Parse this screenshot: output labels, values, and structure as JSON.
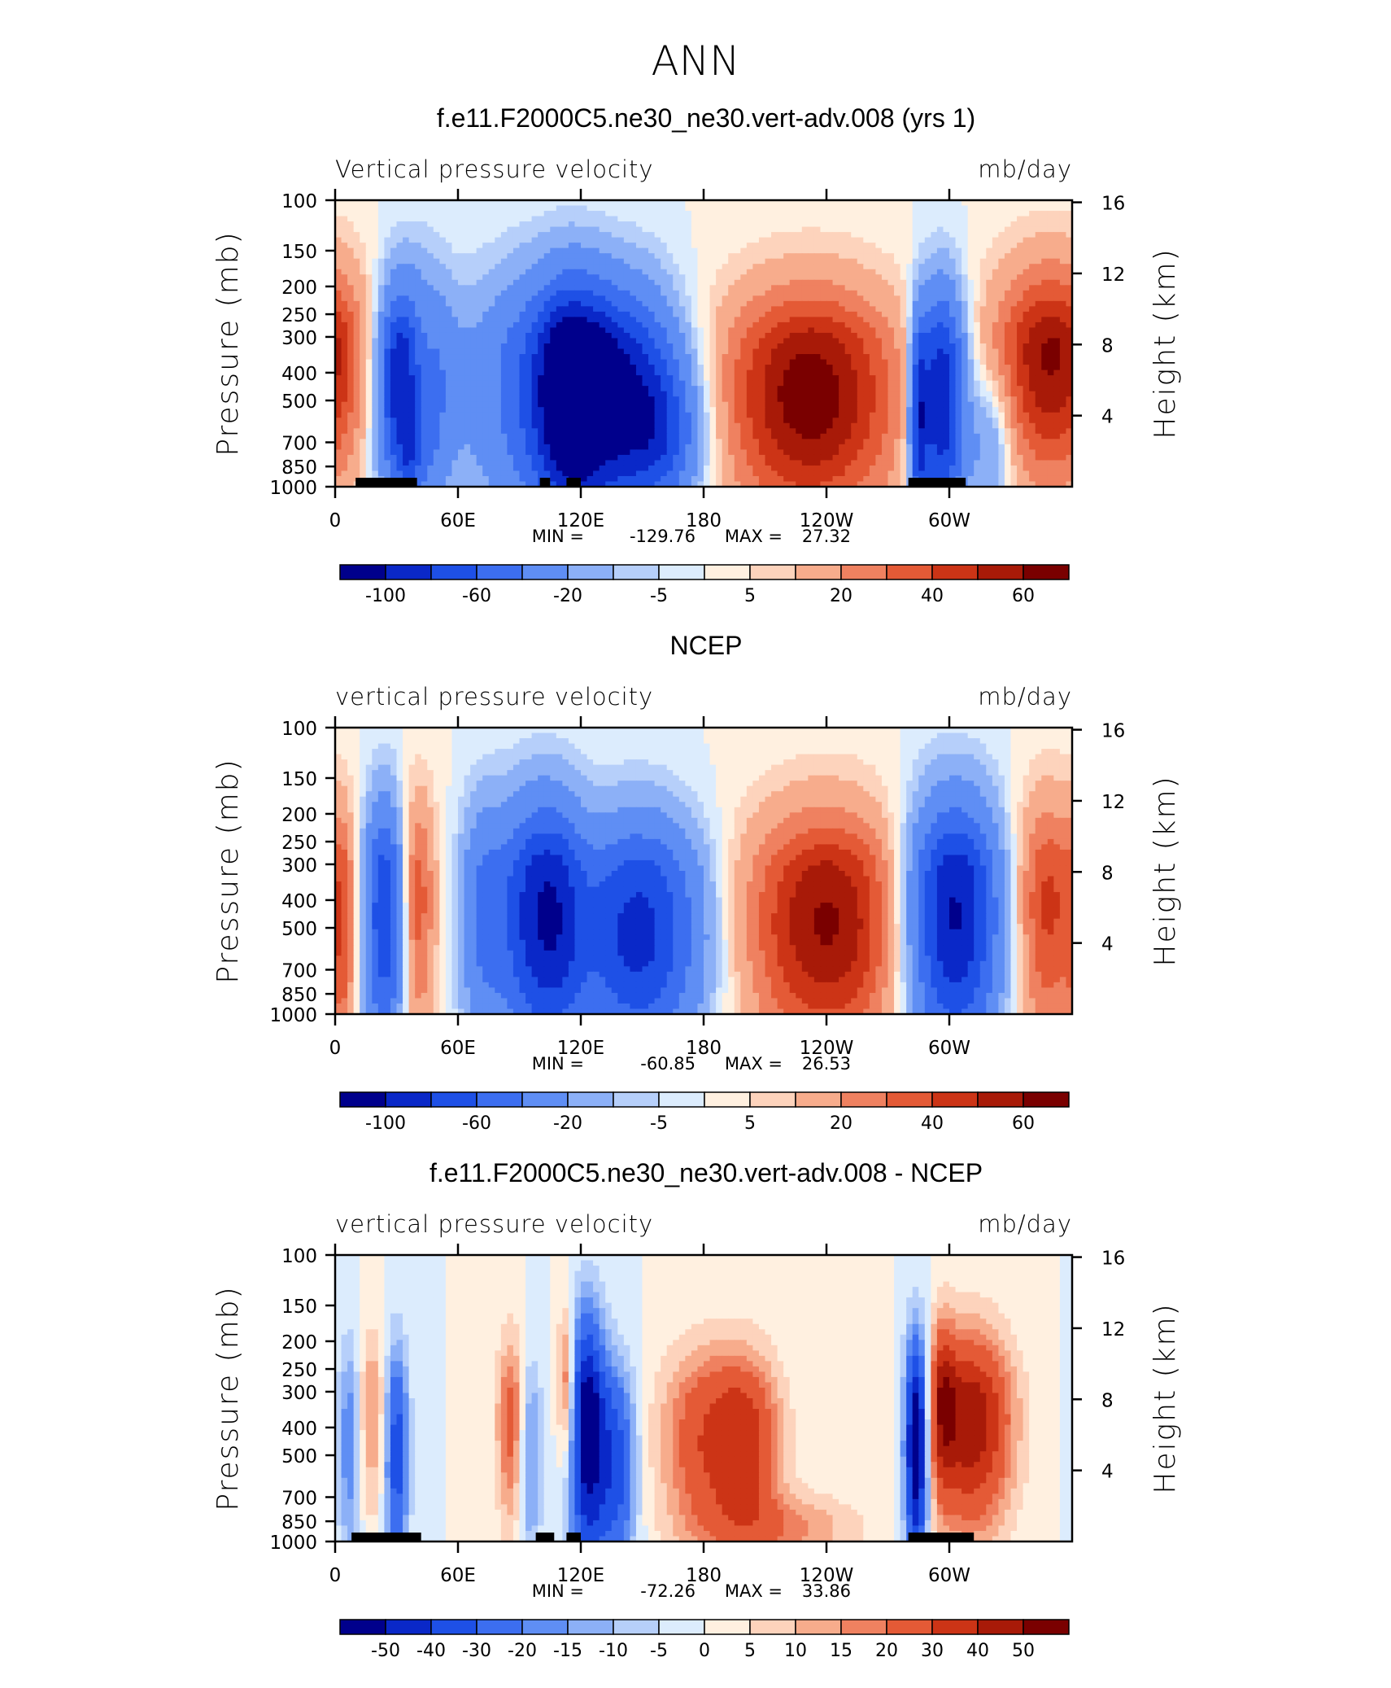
{
  "figure": {
    "title": "ANN",
    "background": "#ffffff"
  },
  "palette": {
    "diverging": [
      "#00008c",
      "#0a28c8",
      "#1e50e6",
      "#3c6ef0",
      "#5f8ef4",
      "#8cb0f7",
      "#b6cffa",
      "#dcecfd",
      "#fff0e0",
      "#fdd3bc",
      "#f7ac8c",
      "#ef8160",
      "#e45a36",
      "#cc3416",
      "#a81a08",
      "#7a0000"
    ]
  },
  "chart_data": [
    {
      "type": "heatmap",
      "title": "f.e11.F2000C5.ne30_ne30.vert-adv.008 (yrs 1)",
      "left_label": "Vertical pressure velocity",
      "right_label": "mb/day",
      "ylabel": "Pressure (mb)",
      "ylabel_right": "Height (km)",
      "x_ticks": [
        "0",
        "60E",
        "120E",
        "180",
        "120W",
        "60W"
      ],
      "x_tick_values": [
        0,
        60,
        120,
        180,
        240,
        300
      ],
      "xlim": [
        0,
        360
      ],
      "y_ticks": [
        "100",
        "150",
        "200",
        "250",
        "300",
        "400",
        "500",
        "700",
        "850",
        "1000"
      ],
      "y_tick_values": [
        100,
        150,
        200,
        250,
        300,
        400,
        500,
        700,
        850,
        1000
      ],
      "ylim": [
        1000,
        100
      ],
      "y_scale": "log",
      "height_ticks": [
        "16",
        "12",
        "8",
        "4"
      ],
      "height_tick_values": [
        16,
        12,
        8,
        4
      ],
      "stats": {
        "min_label": "MIN =",
        "min": "-129.76",
        "max_label": "MAX =",
        "max": "27.32"
      },
      "colorbar_levels": [
        "-100",
        "-60",
        "-20",
        "-5",
        "5",
        "20",
        "40",
        "60"
      ],
      "colorbar_label_positions": [
        1,
        3,
        5,
        7,
        9,
        11,
        13,
        15
      ],
      "land_mask": [
        [
          10,
          30
        ],
        [
          28,
          40
        ],
        [
          100,
          105
        ],
        [
          113,
          120
        ],
        [
          280,
          308
        ]
      ],
      "features": [
        {
          "lon": 37,
          "p": 430,
          "sw": 12,
          "sp": 0.7,
          "amp": -15
        },
        {
          "lon": 29,
          "p": 420,
          "sw": 5,
          "sp": 0.5,
          "amp": -5
        },
        {
          "lon": 36,
          "p": 780,
          "sw": 3,
          "sp": 0.3,
          "amp": -4
        },
        {
          "lon": 43,
          "p": 350,
          "sw": 5,
          "sp": 0.4,
          "amp": 5
        },
        {
          "lon": 94,
          "p": 450,
          "sw": 22,
          "sp": 0.8,
          "amp": -8
        },
        {
          "lon": 115,
          "p": 480,
          "sw": 12,
          "sp": 0.7,
          "amp": -14
        },
        {
          "lon": 138,
          "p": 470,
          "sw": 20,
          "sp": 0.7,
          "amp": -16
        },
        {
          "lon": 160,
          "p": 650,
          "sw": 14,
          "sp": 0.4,
          "amp": -8
        },
        {
          "lon": 232,
          "p": 480,
          "sw": 30,
          "sp": 0.7,
          "amp": 11
        },
        {
          "lon": 296,
          "p": 500,
          "sw": 8,
          "sp": 0.7,
          "amp": -18
        },
        {
          "lon": 285,
          "p": 600,
          "sw": 3,
          "sp": 0.6,
          "amp": -12
        },
        {
          "lon": 320,
          "p": 700,
          "sw": 8,
          "sp": 0.4,
          "amp": -5
        },
        {
          "lon": 350,
          "p": 350,
          "sw": 20,
          "sp": 0.7,
          "amp": 10
        }
      ]
    },
    {
      "type": "heatmap",
      "title": "NCEP",
      "left_label": "vertical pressure velocity",
      "right_label": "mb/day",
      "ylabel": "Pressure (mb)",
      "ylabel_right": "Height (km)",
      "x_ticks": [
        "0",
        "60E",
        "120E",
        "180",
        "120W",
        "60W"
      ],
      "x_tick_values": [
        0,
        60,
        120,
        180,
        240,
        300
      ],
      "xlim": [
        0,
        360
      ],
      "y_ticks": [
        "100",
        "150",
        "200",
        "250",
        "300",
        "400",
        "500",
        "700",
        "850",
        "1000"
      ],
      "y_tick_values": [
        100,
        150,
        200,
        250,
        300,
        400,
        500,
        700,
        850,
        1000
      ],
      "ylim": [
        1000,
        100
      ],
      "y_scale": "log",
      "height_ticks": [
        "16",
        "12",
        "8",
        "4"
      ],
      "height_tick_values": [
        16,
        12,
        8,
        4
      ],
      "stats": {
        "min_label": "MIN =",
        "min": "-60.85",
        "max_label": "MAX =",
        "max": "26.53"
      },
      "colorbar_levels": [
        "-100",
        "-60",
        "-20",
        "-5",
        "5",
        "20",
        "40",
        "60"
      ],
      "colorbar_label_positions": [
        1,
        3,
        5,
        7,
        9,
        11,
        13,
        15
      ],
      "land_mask": [],
      "features": [
        {
          "lon": 24,
          "p": 450,
          "sw": 7,
          "sp": 0.8,
          "amp": -13
        },
        {
          "lon": 40,
          "p": 400,
          "sw": 6,
          "sp": 0.8,
          "amp": 6
        },
        {
          "lon": 72,
          "p": 450,
          "sw": 8,
          "sp": 0.8,
          "amp": -7
        },
        {
          "lon": 92,
          "p": 450,
          "sw": 10,
          "sp": 0.8,
          "amp": -10
        },
        {
          "lon": 108,
          "p": 450,
          "sw": 10,
          "sp": 0.8,
          "amp": -12
        },
        {
          "lon": 148,
          "p": 520,
          "sw": 22,
          "sp": 0.7,
          "amp": -15
        },
        {
          "lon": 240,
          "p": 480,
          "sw": 28,
          "sp": 0.75,
          "amp": 10
        },
        {
          "lon": 302,
          "p": 450,
          "sw": 16,
          "sp": 0.8,
          "amp": -18
        },
        {
          "lon": 348,
          "p": 420,
          "sw": 12,
          "sp": 0.8,
          "amp": 7
        },
        {
          "lon": 4,
          "p": 500,
          "sw": 4,
          "sp": 0.8,
          "amp": 4
        }
      ]
    },
    {
      "type": "heatmap",
      "title": "f.e11.F2000C5.ne30_ne30.vert-adv.008 - NCEP",
      "left_label": "vertical pressure velocity",
      "right_label": "mb/day",
      "ylabel": "Pressure (mb)",
      "ylabel_right": "Height (km)",
      "x_ticks": [
        "0",
        "60E",
        "120E",
        "180",
        "120W",
        "60W"
      ],
      "x_tick_values": [
        0,
        60,
        120,
        180,
        240,
        300
      ],
      "xlim": [
        0,
        360
      ],
      "y_ticks": [
        "100",
        "150",
        "200",
        "250",
        "300",
        "400",
        "500",
        "700",
        "850",
        "1000"
      ],
      "y_tick_values": [
        100,
        150,
        200,
        250,
        300,
        400,
        500,
        700,
        850,
        1000
      ],
      "ylim": [
        1000,
        100
      ],
      "y_scale": "log",
      "height_ticks": [
        "16",
        "12",
        "8",
        "4"
      ],
      "height_tick_values": [
        16,
        12,
        8,
        4
      ],
      "stats": {
        "min_label": "MIN =",
        "min": "-72.26",
        "max_label": "MAX =",
        "max": "33.86"
      },
      "colorbar_levels": [
        "-50",
        "-40",
        "-30",
        "-20",
        "-15",
        "-10",
        "-5",
        "0",
        "5",
        "10",
        "15",
        "20",
        "30",
        "40",
        "50"
      ],
      "colorbar_label_positions": [
        1,
        2,
        3,
        4,
        5,
        6,
        7,
        8,
        9,
        10,
        11,
        12,
        13,
        14,
        15
      ],
      "land_mask": [
        [
          8,
          30
        ],
        [
          26,
          42
        ],
        [
          98,
          107
        ],
        [
          113,
          120
        ],
        [
          280,
          312
        ]
      ],
      "features": [
        {
          "lon": 30,
          "p": 500,
          "sw": 4,
          "sp": 0.7,
          "amp": -9
        },
        {
          "lon": 7,
          "p": 450,
          "sw": 4,
          "sp": 0.7,
          "amp": -5
        },
        {
          "lon": 18,
          "p": 350,
          "sw": 5,
          "sp": 0.6,
          "amp": 4
        },
        {
          "lon": 86,
          "p": 380,
          "sw": 5,
          "sp": 0.6,
          "amp": 6
        },
        {
          "lon": 95,
          "p": 500,
          "sw": 4,
          "sp": 0.6,
          "amp": -5
        },
        {
          "lon": 123,
          "p": 380,
          "sw": 6,
          "sp": 0.9,
          "amp": -14
        },
        {
          "lon": 137,
          "p": 550,
          "sw": 7,
          "sp": 0.6,
          "amp": -9
        },
        {
          "lon": 186,
          "p": 450,
          "sw": 18,
          "sp": 0.6,
          "amp": 8
        },
        {
          "lon": 203,
          "p": 450,
          "sw": 10,
          "sp": 0.5,
          "amp": 4
        },
        {
          "lon": 220,
          "p": 900,
          "sw": 25,
          "sp": 0.2,
          "amp": 4
        },
        {
          "lon": 284,
          "p": 450,
          "sw": 4,
          "sp": 0.7,
          "amp": -17
        },
        {
          "lon": 310,
          "p": 380,
          "sw": 14,
          "sp": 0.6,
          "amp": 12
        },
        {
          "lon": 297,
          "p": 300,
          "sw": 4,
          "sp": 0.5,
          "amp": 7
        },
        {
          "lon": 113,
          "p": 250,
          "sw": 3,
          "sp": 0.5,
          "amp": 7
        }
      ]
    }
  ]
}
